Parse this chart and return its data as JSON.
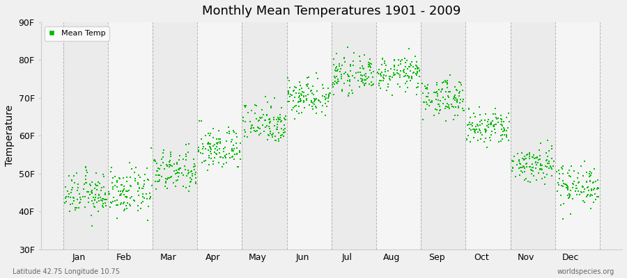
{
  "title": "Monthly Mean Temperatures 1901 - 2009",
  "ylabel": "Temperature",
  "xlabel_labels": [
    "Jan",
    "Feb",
    "Mar",
    "Apr",
    "May",
    "Jun",
    "Jul",
    "Aug",
    "Sep",
    "Oct",
    "Nov",
    "Dec"
  ],
  "ytick_labels": [
    "30F",
    "40F",
    "50F",
    "60F",
    "70F",
    "80F",
    "90F"
  ],
  "ytick_values": [
    30,
    40,
    50,
    60,
    70,
    80,
    90
  ],
  "ylim": [
    30,
    90
  ],
  "background_color": "#f0f0f0",
  "plot_bg_color": "#f0f0f0",
  "band_colors": [
    "#ebebeb",
    "#f5f5f5"
  ],
  "marker_color": "#00bb00",
  "marker_size": 4,
  "legend_label": "Mean Temp",
  "footnote_left": "Latitude 42.75 Longitude 10.75",
  "footnote_right": "worldspecies.org",
  "num_years": 109,
  "monthly_means_F": [
    44.5,
    45.0,
    50.5,
    56.5,
    63.5,
    70.5,
    76.0,
    76.5,
    70.0,
    62.0,
    52.5,
    47.0
  ],
  "monthly_stds_F": [
    2.8,
    3.0,
    2.8,
    2.8,
    2.8,
    2.5,
    2.2,
    2.2,
    2.5,
    2.5,
    2.5,
    2.8
  ]
}
